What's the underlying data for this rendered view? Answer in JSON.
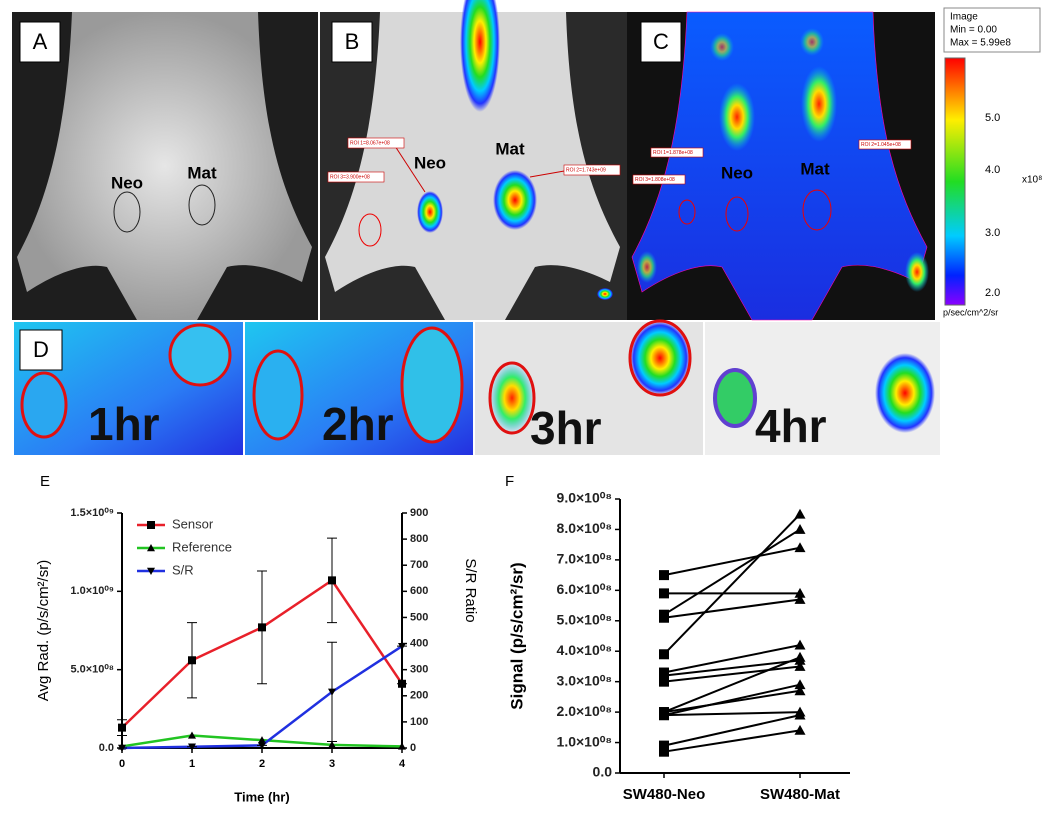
{
  "panels": {
    "a": {
      "label": "A",
      "neo": "Neo",
      "mat": "Mat"
    },
    "b": {
      "label": "B",
      "neo": "Neo",
      "mat": "Mat",
      "roi": [
        "ROI 1=8.067e+08",
        "ROI 3=3.900e+08",
        "ROI 2=1.743e+09"
      ]
    },
    "c": {
      "label": "C",
      "neo": "Neo",
      "mat": "Mat",
      "roi": [
        "ROI 1=1.878e+08",
        "ROI 3=1.808e+08",
        "ROI 2=1.045e+08"
      ]
    },
    "colorbar": {
      "box": [
        "Image",
        "Min = 0.00",
        "Max = 5.99e8"
      ],
      "ticks": [
        "5.0",
        "4.0",
        "3.0",
        "2.0"
      ],
      "exponent": "x10⁸",
      "unit": "p/sec/cm^2/sr"
    },
    "d": {
      "label": "D",
      "times": [
        "1hr",
        "2hr",
        "3hr",
        "4hr"
      ]
    }
  },
  "chart_data": [
    {
      "type": "line",
      "panel": "E",
      "xlabel": "Time (hr)",
      "ylabel": "Avg Rad. (p/s/cm²/sr)",
      "y2label": "S/R Ratio",
      "x": [
        0,
        1,
        2,
        3,
        4
      ],
      "xlim": [
        0,
        4
      ],
      "xticks": [
        0,
        1,
        2,
        3,
        4
      ],
      "ylim": [
        0,
        1500000000
      ],
      "yticks": [
        {
          "value": 0,
          "label": "0.0"
        },
        {
          "value": 500000000,
          "label": "5.0×10⁰⁸"
        },
        {
          "value": 1000000000,
          "label": "1.0×10⁰⁹"
        },
        {
          "value": 1500000000,
          "label": "1.5×10⁰⁹"
        }
      ],
      "y2lim": [
        0,
        900
      ],
      "y2ticks": [
        0,
        100,
        200,
        300,
        400,
        500,
        600,
        700,
        800,
        900
      ],
      "series": [
        {
          "name": "Sensor",
          "color": "#e8202a",
          "marker": "square",
          "values": [
            130000000,
            560000000,
            770000000,
            1070000000,
            410000000
          ],
          "errors": [
            50000000,
            240000000,
            360000000,
            270000000,
            0
          ]
        },
        {
          "name": "Reference",
          "color": "#22c422",
          "marker": "triangle-up",
          "values": [
            10000000,
            80000000,
            50000000,
            20000000,
            10000000
          ]
        },
        {
          "name": "S/R",
          "color": "#2030e0",
          "marker": "triangle-down",
          "axis": "y2",
          "values": [
            0,
            5,
            10,
            215,
            390
          ],
          "errors": [
            0,
            0,
            0,
            190,
            0
          ]
        }
      ]
    },
    {
      "type": "paired",
      "panel": "F",
      "ylabel": "Signal (p/s/cm²/sr)",
      "categories": [
        "SW480-Neo",
        "SW480-Mat"
      ],
      "ylim": [
        0,
        900000000
      ],
      "yticks": [
        {
          "value": 0,
          "label": "0.0"
        },
        {
          "value": 100000000,
          "label": "1.0×10⁰⁸"
        },
        {
          "value": 200000000,
          "label": "2.0×10⁰⁸"
        },
        {
          "value": 300000000,
          "label": "3.0×10⁰⁸"
        },
        {
          "value": 400000000,
          "label": "4.0×10⁰⁸"
        },
        {
          "value": 500000000,
          "label": "5.0×10⁰⁸"
        },
        {
          "value": 600000000,
          "label": "6.0×10⁰⁸"
        },
        {
          "value": 700000000,
          "label": "7.0×10⁰⁸"
        },
        {
          "value": 800000000,
          "label": "8.0×10⁰⁸"
        },
        {
          "value": 900000000,
          "label": "9.0×10⁰⁸"
        }
      ],
      "color": "#000000",
      "series": [
        {
          "values": [
            650000000,
            740000000
          ]
        },
        {
          "values": [
            590000000,
            590000000
          ]
        },
        {
          "values": [
            520000000,
            800000000
          ]
        },
        {
          "values": [
            510000000,
            570000000
          ]
        },
        {
          "values": [
            390000000,
            850000000
          ]
        },
        {
          "values": [
            330000000,
            420000000
          ]
        },
        {
          "values": [
            320000000,
            370000000
          ]
        },
        {
          "values": [
            300000000,
            350000000
          ]
        },
        {
          "values": [
            200000000,
            380000000
          ]
        },
        {
          "values": [
            190000000,
            290000000
          ]
        },
        {
          "values": [
            190000000,
            200000000
          ]
        },
        {
          "values": [
            200000000,
            270000000
          ]
        },
        {
          "values": [
            90000000,
            190000000
          ]
        },
        {
          "values": [
            70000000,
            140000000
          ]
        }
      ]
    }
  ]
}
